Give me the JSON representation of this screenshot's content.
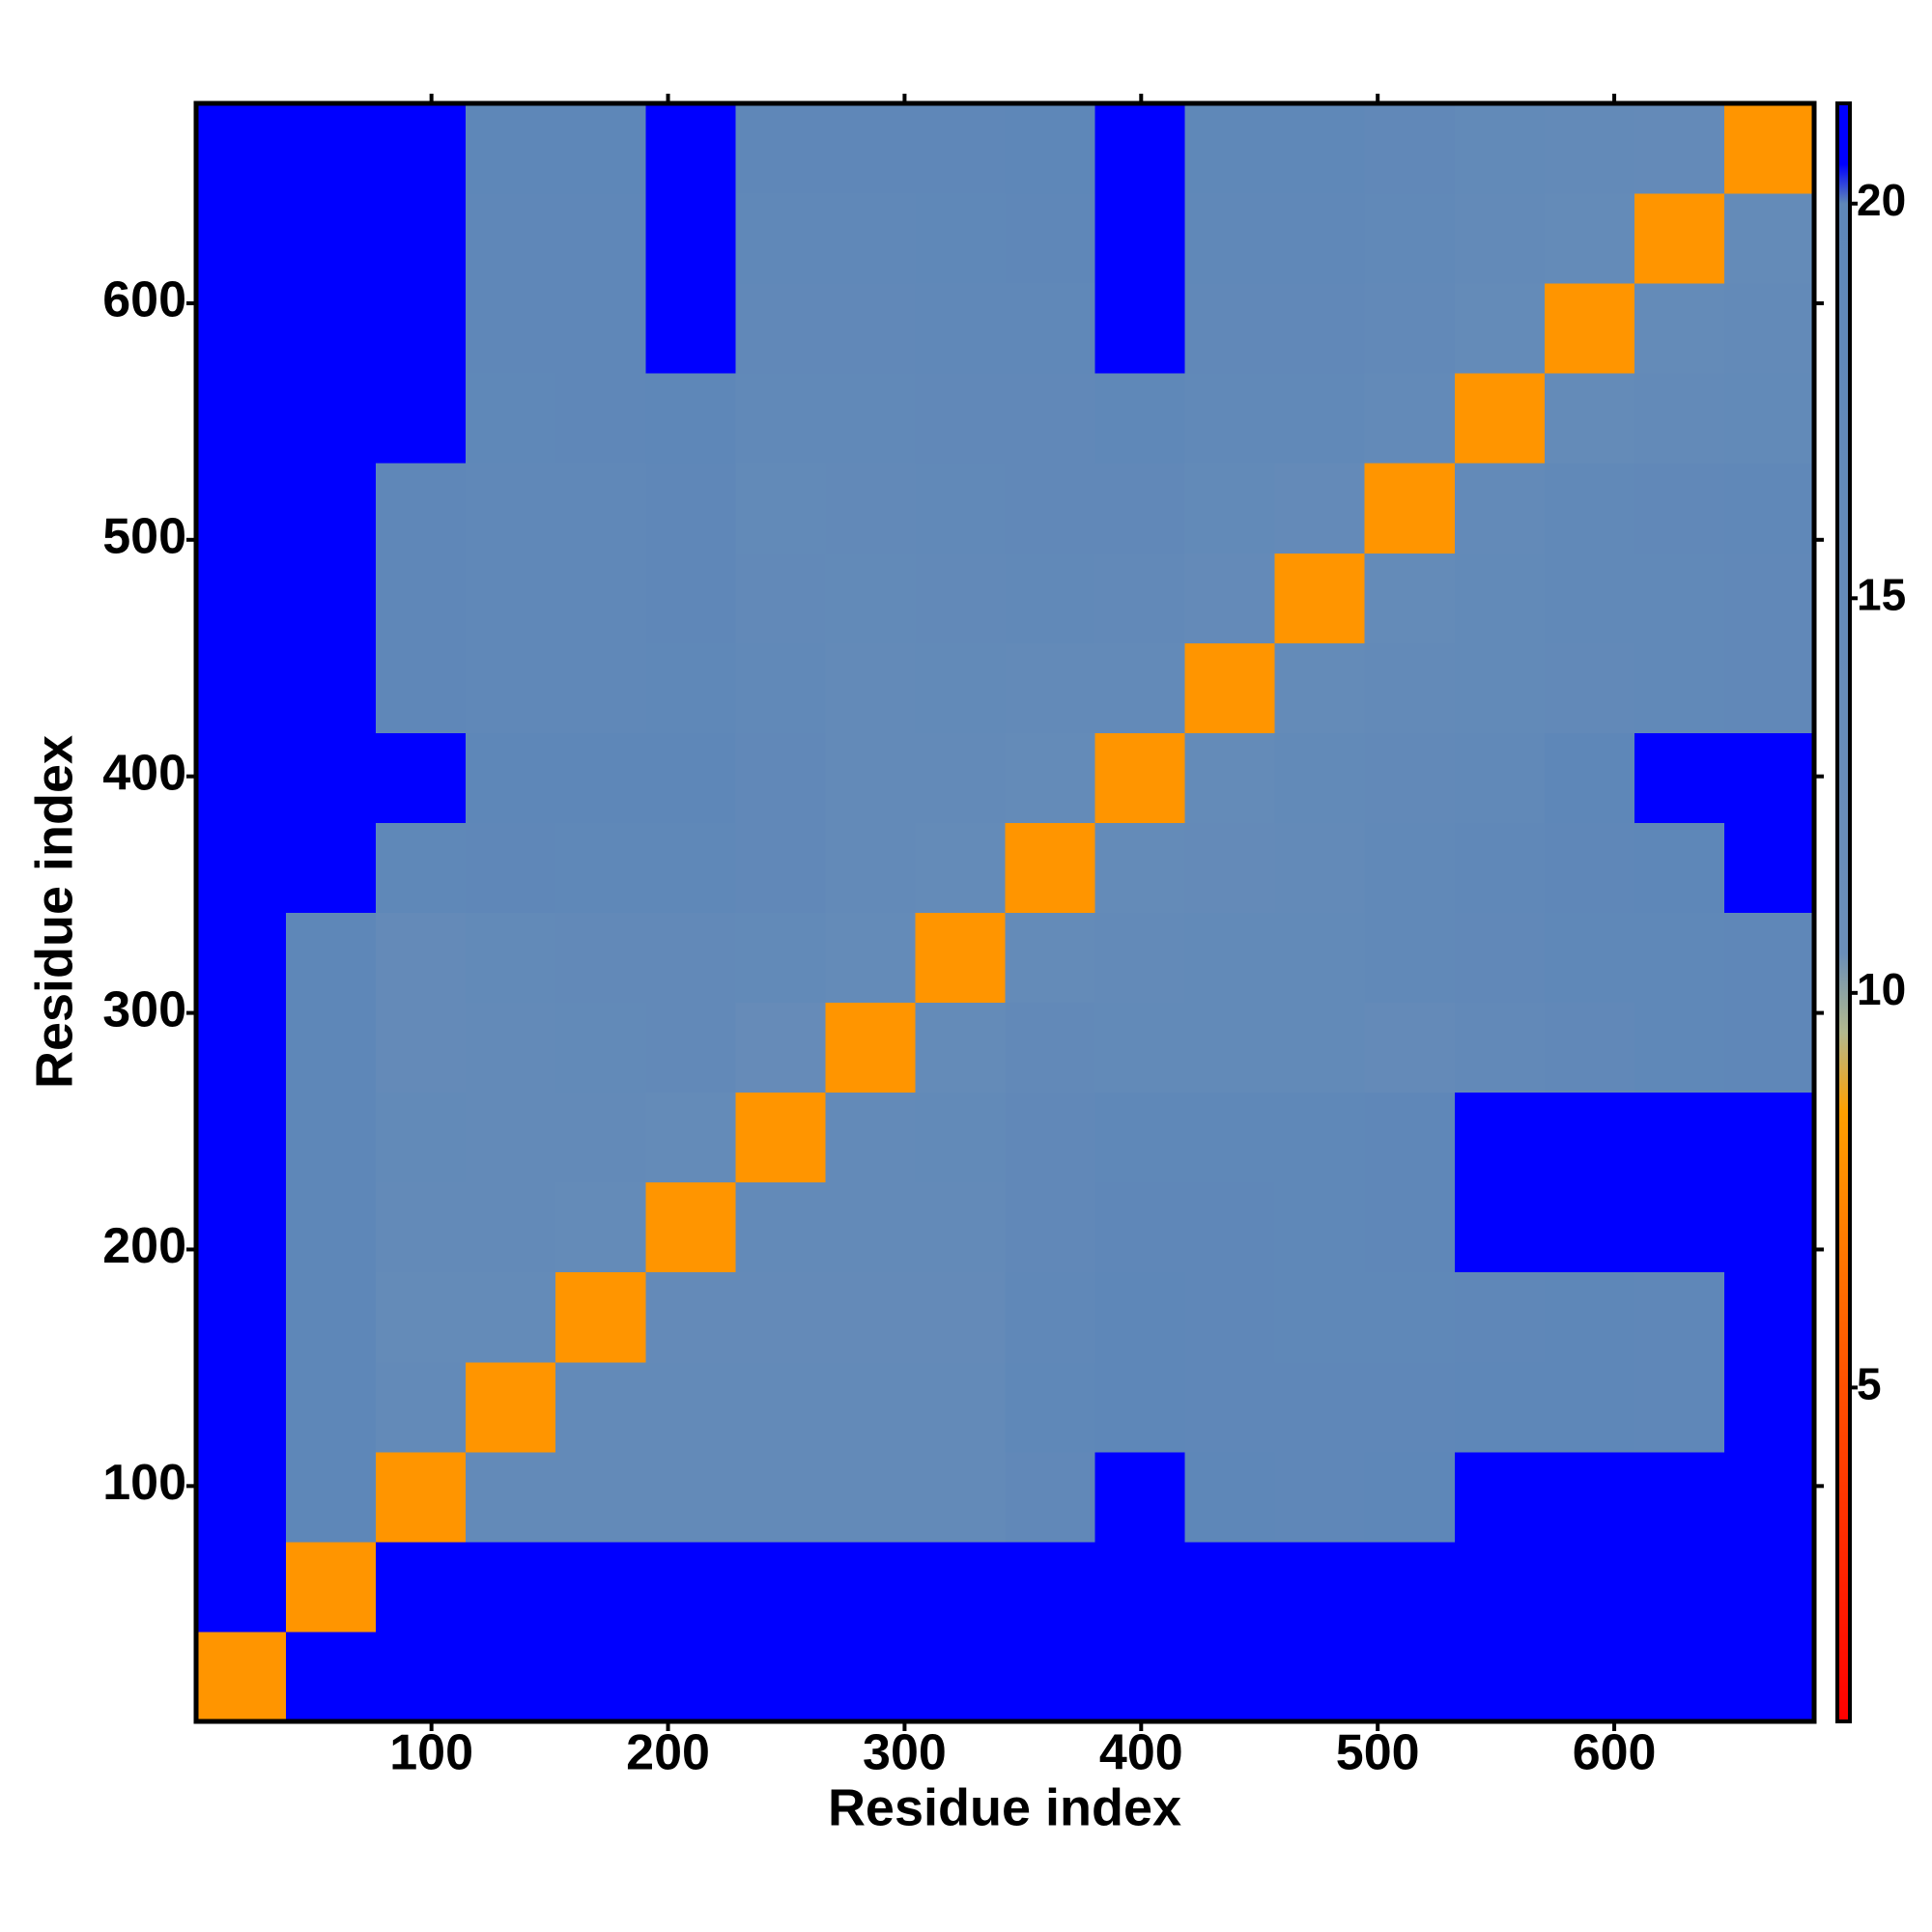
{
  "chart_data": {
    "type": "heatmap",
    "xlabel": "Residue index",
    "ylabel": "Residue index",
    "x": [
      19.5,
      57.5,
      95.5,
      133.5,
      171.5,
      209.5,
      247.5,
      285.5,
      323.5,
      361.5,
      399.5,
      437.5,
      475.5,
      513.5,
      551.5,
      589.5,
      627.5,
      665.5
    ],
    "y": [
      19.5,
      57.5,
      95.5,
      133.5,
      171.5,
      209.5,
      247.5,
      285.5,
      323.5,
      361.5,
      399.5,
      437.5,
      475.5,
      513.5,
      551.5,
      589.5,
      627.5,
      665.5
    ],
    "z": [
      [
        8,
        21,
        21,
        21,
        21,
        21,
        21,
        21,
        21,
        21,
        21,
        21,
        21,
        21,
        21,
        21,
        21,
        21
      ],
      [
        21,
        8,
        21,
        21,
        21,
        21,
        21,
        21,
        21,
        21,
        21,
        21,
        21,
        21,
        21,
        21,
        21,
        21
      ],
      [
        21,
        20,
        8,
        16,
        16,
        16,
        16,
        16,
        16,
        18,
        20.5,
        20,
        19.5,
        20,
        21,
        21,
        21,
        21
      ],
      [
        21,
        20,
        16,
        8,
        16,
        16,
        16,
        16,
        16,
        19,
        20,
        19.5,
        19.5,
        19.5,
        20,
        20,
        19.5,
        20.5
      ],
      [
        21,
        20,
        15,
        15,
        8,
        15.5,
        15.5,
        15.5,
        15.5,
        18.5,
        20,
        19.5,
        19,
        19,
        19.5,
        20,
        19.5,
        21
      ],
      [
        21,
        20,
        16,
        16,
        15,
        8,
        16,
        16,
        16,
        18,
        19.5,
        19.5,
        19,
        19.5,
        20.5,
        20.5,
        20.5,
        21
      ],
      [
        21,
        20,
        16.5,
        16,
        16,
        15,
        8,
        16,
        16.5,
        18,
        19,
        19,
        19,
        19.5,
        20.5,
        20.5,
        20.5,
        21
      ],
      [
        21,
        20,
        15.5,
        16,
        16.5,
        17,
        14,
        8,
        15,
        17,
        16.5,
        16.5,
        16.5,
        15.5,
        17,
        18,
        19,
        19.5
      ],
      [
        21,
        20,
        15.5,
        16.5,
        17,
        17,
        16.5,
        15,
        8,
        15,
        16,
        16.5,
        16.5,
        17.5,
        18,
        19,
        19,
        19.5
      ],
      [
        21,
        20.5,
        19,
        19.5,
        19,
        19,
        18,
        16,
        15,
        8,
        15,
        15.5,
        16,
        17.5,
        18.5,
        19.5,
        20,
        20.5
      ],
      [
        21,
        21,
        20.5,
        20,
        20,
        20,
        18,
        16,
        16,
        15,
        8,
        15,
        16.5,
        17,
        17.5,
        20,
        20.5,
        21
      ],
      [
        21,
        20.5,
        19.5,
        18.5,
        18.5,
        19,
        17.5,
        16,
        16.5,
        16,
        16,
        8,
        15,
        16,
        16.5,
        17,
        17.5,
        18
      ],
      [
        21,
        20.5,
        19.5,
        18.5,
        18.5,
        19.5,
        17,
        16.5,
        17,
        17.5,
        17,
        15.5,
        8,
        15,
        16.5,
        17.5,
        17.5,
        18
      ],
      [
        21,
        20.5,
        19.5,
        18.5,
        18.5,
        19.5,
        16.5,
        17,
        17.5,
        18,
        18,
        16.5,
        15.5,
        8,
        16,
        17.5,
        18,
        18.5
      ],
      [
        21,
        21,
        20.5,
        19,
        19.5,
        20,
        17.5,
        17.5,
        18,
        18,
        19,
        17.5,
        17.5,
        16,
        8,
        15,
        16,
        16.5
      ],
      [
        21,
        21,
        20.5,
        19.5,
        19.5,
        20.5,
        18,
        18,
        18.5,
        18.5,
        20.5,
        18,
        18,
        17,
        15,
        8,
        15,
        16
      ],
      [
        21,
        21,
        21,
        19.5,
        19.5,
        21,
        18.5,
        18.5,
        19,
        19.5,
        21,
        18.5,
        18.5,
        17.5,
        16,
        15,
        8,
        15
      ],
      [
        21,
        21,
        21,
        20,
        20,
        21,
        19.5,
        19.5,
        19.5,
        20,
        21,
        19,
        19,
        18,
        16.5,
        16,
        15.5,
        8
      ]
    ],
    "xlim": [
      0.5,
      684.5
    ],
    "ylim": [
      0.5,
      684.5
    ],
    "xticks": [
      100,
      200,
      300,
      400,
      500,
      600
    ],
    "yticks": [
      100,
      200,
      300,
      400,
      500,
      600
    ],
    "colorbar": {
      "lim": [
        0.77,
        21.27
      ],
      "ticks": [
        5,
        10,
        15,
        20
      ],
      "stops": [
        [
          0.77,
          "#ff0000"
        ],
        [
          5,
          "#ff5000"
        ],
        [
          8.5,
          "#ffa000"
        ],
        [
          9.5,
          "#b2b98e"
        ],
        [
          10.5,
          "#6a8eb8"
        ],
        [
          20,
          "#5e87b8"
        ],
        [
          20.5,
          "#0000ff"
        ],
        [
          21.27,
          "#0000ff"
        ]
      ]
    }
  }
}
